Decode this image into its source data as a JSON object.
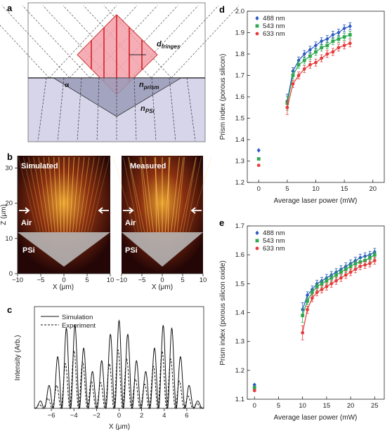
{
  "panel_a": {
    "label": "a",
    "d_label": "d",
    "d_sub": "fringes",
    "alpha": "α",
    "n_prism": "n",
    "n_prism_sub": "prism",
    "n_psi": "n",
    "n_psi_sub": "PSi",
    "colors": {
      "prism": "#f3a0a8",
      "substrate": "#d6d5ea",
      "triangle": "#9a9bb8"
    }
  },
  "panel_b": {
    "label": "b",
    "left_title": "Simulated",
    "right_title": "Measured",
    "air": "Air",
    "psi": "PSi",
    "ylabel": "Z (μm)",
    "xlabel": "X (μm)",
    "yticks": [
      "0",
      "10",
      "20",
      "30"
    ],
    "xticks": [
      "−10",
      "−5",
      "0",
      "5",
      "10"
    ]
  },
  "chart_data": [
    {
      "panel": "c",
      "type": "line",
      "title": "",
      "xlabel": "X (μm)",
      "ylabel": "Intensity (Arb.)",
      "xlim": [
        -7.5,
        7.5
      ],
      "xticks": [
        "−6",
        "−4",
        "−2",
        "0",
        "2",
        "4",
        "6"
      ],
      "legend_position": "top-left",
      "series": [
        {
          "name": "Simulation",
          "style": "solid",
          "period": 0.78,
          "envelope_peaks_x": [
            -4.3,
            0,
            4.3
          ]
        },
        {
          "name": "Experiment",
          "style": "dashed",
          "period": 0.78,
          "envelope_peaks_x": [
            -4.0,
            0,
            4.0
          ]
        }
      ]
    },
    {
      "panel": "d",
      "type": "scatter",
      "xlabel": "Average laser power (mW)",
      "ylabel": "Prism index (porous silicon)",
      "xlim": [
        -2,
        22
      ],
      "ylim": [
        1.2,
        2.0
      ],
      "xticks": [
        "0",
        "5",
        "10",
        "15",
        "20"
      ],
      "yticks": [
        "1.2",
        "1.3",
        "1.4",
        "1.5",
        "1.6",
        "1.7",
        "1.8",
        "1.9",
        "2.0"
      ],
      "legend_position": "top-left",
      "series": [
        {
          "name": "488 nm",
          "color": "#2b59c3",
          "marker": "diamond",
          "x": [
            0,
            5,
            6,
            7,
            8,
            9,
            10,
            11,
            12,
            13,
            14,
            15,
            16
          ],
          "y": [
            1.35,
            1.58,
            1.72,
            1.77,
            1.8,
            1.82,
            1.84,
            1.86,
            1.87,
            1.89,
            1.9,
            1.92,
            1.93
          ]
        },
        {
          "name": "543 nm",
          "color": "#2fa84f",
          "marker": "square",
          "x": [
            0,
            5,
            6,
            7,
            8,
            9,
            10,
            11,
            12,
            13,
            14,
            15,
            16
          ],
          "y": [
            1.31,
            1.57,
            1.7,
            1.75,
            1.77,
            1.79,
            1.81,
            1.83,
            1.84,
            1.86,
            1.87,
            1.88,
            1.89
          ]
        },
        {
          "name": "633 nm",
          "color": "#e53b3b",
          "marker": "circle",
          "x": [
            0,
            5,
            6,
            7,
            8,
            9,
            10,
            11,
            12,
            13,
            14,
            15,
            16
          ],
          "y": [
            1.28,
            1.55,
            1.66,
            1.7,
            1.73,
            1.75,
            1.76,
            1.78,
            1.8,
            1.81,
            1.83,
            1.84,
            1.85
          ]
        }
      ]
    },
    {
      "panel": "e",
      "type": "scatter",
      "xlabel": "Average laser power (mW)",
      "ylabel": "Prism index (porous silicon oxide)",
      "xlim": [
        -1.5,
        27
      ],
      "ylim": [
        1.1,
        1.7
      ],
      "xticks": [
        "0",
        "5",
        "10",
        "15",
        "20",
        "25"
      ],
      "yticks": [
        "1.1",
        "1.2",
        "1.3",
        "1.4",
        "1.5",
        "1.6",
        "1.7"
      ],
      "legend_position": "top-left",
      "series": [
        {
          "name": "488 nm",
          "color": "#2b59c3",
          "marker": "diamond",
          "x": [
            0,
            10,
            11,
            12,
            13,
            14,
            15,
            16,
            17,
            18,
            19,
            20,
            21,
            22,
            23,
            24,
            25
          ],
          "y": [
            1.15,
            1.41,
            1.46,
            1.48,
            1.5,
            1.51,
            1.52,
            1.53,
            1.54,
            1.55,
            1.56,
            1.57,
            1.58,
            1.59,
            1.595,
            1.6,
            1.61
          ]
        },
        {
          "name": "543 nm",
          "color": "#2fa84f",
          "marker": "square",
          "x": [
            0,
            10,
            11,
            12,
            13,
            14,
            15,
            16,
            17,
            18,
            19,
            20,
            21,
            22,
            23,
            24,
            25
          ],
          "y": [
            1.14,
            1.39,
            1.44,
            1.47,
            1.49,
            1.5,
            1.51,
            1.52,
            1.53,
            1.54,
            1.55,
            1.56,
            1.57,
            1.575,
            1.58,
            1.59,
            1.6
          ]
        },
        {
          "name": "633 nm",
          "color": "#e53b3b",
          "marker": "circle",
          "x": [
            0,
            10,
            11,
            12,
            13,
            14,
            15,
            16,
            17,
            18,
            19,
            20,
            21,
            22,
            23,
            24,
            25
          ],
          "y": [
            1.13,
            1.33,
            1.41,
            1.45,
            1.47,
            1.48,
            1.49,
            1.5,
            1.51,
            1.52,
            1.53,
            1.54,
            1.55,
            1.56,
            1.565,
            1.57,
            1.58
          ]
        }
      ]
    }
  ]
}
